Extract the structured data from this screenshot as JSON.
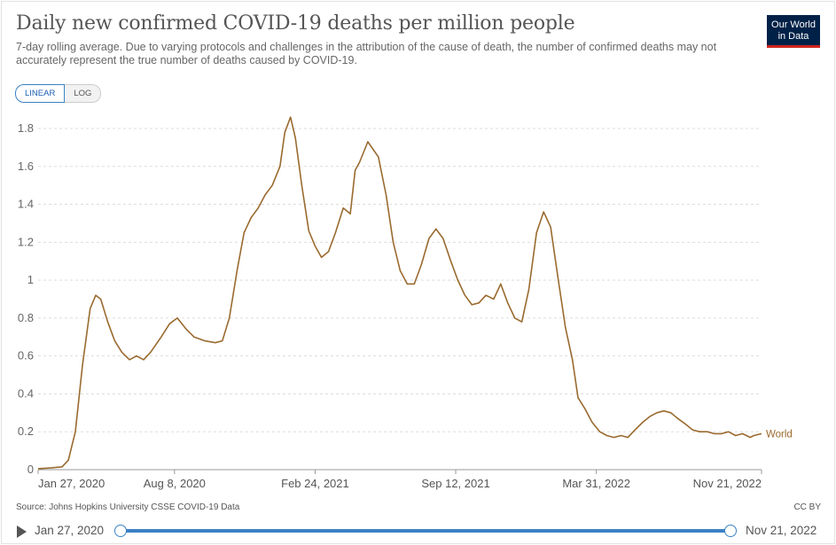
{
  "header": {
    "title": "Daily new confirmed COVID-19 deaths per million people",
    "subtitle": "7-day rolling average. Due to varying protocols and challenges in the attribution of the cause of death, the number of confirmed deaths may not accurately represent the true number of deaths caused by COVID-19.",
    "logo_line1": "Our World",
    "logo_line2": "in Data"
  },
  "controls": {
    "linear_label": "LINEAR",
    "log_label": "LOG",
    "active_scale": "linear"
  },
  "footer": {
    "source": "Source: Johns Hopkins University CSSE COVID-19 Data",
    "license": "CC BY"
  },
  "timeline": {
    "start_label": "Jan 27, 2020",
    "end_label": "Nov 21, 2022",
    "play_icon": "play-icon"
  },
  "colors": {
    "series": "#9a6a2f",
    "grid": "#dddddd",
    "accent": "#3b82c4",
    "logo_bg": "#002147",
    "logo_bar": "#ce261e"
  },
  "chart_data": {
    "type": "line",
    "title": "Daily new confirmed COVID-19 deaths per million people",
    "xlabel": "",
    "ylabel": "",
    "xlim": [
      "2020-01-27",
      "2022-11-21"
    ],
    "ylim": [
      0,
      1.8
    ],
    "yticks": [
      0,
      0.2,
      0.4,
      0.6,
      0.8,
      1,
      1.2,
      1.4,
      1.6,
      1.8
    ],
    "ytick_labels": [
      "0",
      "0.2",
      "0.4",
      "0.6",
      "0.8",
      "1",
      "1.2",
      "1.4",
      "1.6",
      "1.8"
    ],
    "xticks": [
      "2020-01-27",
      "2020-08-08",
      "2021-02-24",
      "2021-09-12",
      "2022-03-31",
      "2022-11-21"
    ],
    "xtick_labels": [
      "Jan 27, 2020",
      "Aug 8, 2020",
      "Feb 24, 2021",
      "Sep 12, 2021",
      "Mar 31, 2022",
      "Nov 21, 2022"
    ],
    "grid": true,
    "series": [
      {
        "name": "World",
        "x": [
          "2020-01-27",
          "2020-02-15",
          "2020-03-01",
          "2020-03-10",
          "2020-03-20",
          "2020-03-30",
          "2020-04-10",
          "2020-04-18",
          "2020-04-25",
          "2020-05-05",
          "2020-05-15",
          "2020-05-25",
          "2020-06-05",
          "2020-06-15",
          "2020-06-25",
          "2020-07-05",
          "2020-07-20",
          "2020-08-01",
          "2020-08-12",
          "2020-08-25",
          "2020-09-05",
          "2020-09-20",
          "2020-10-05",
          "2020-10-15",
          "2020-10-25",
          "2020-11-05",
          "2020-11-15",
          "2020-11-25",
          "2020-12-05",
          "2020-12-15",
          "2020-12-25",
          "2021-01-05",
          "2021-01-12",
          "2021-01-20",
          "2021-01-27",
          "2021-02-05",
          "2021-02-15",
          "2021-02-24",
          "2021-03-05",
          "2021-03-15",
          "2021-03-25",
          "2021-04-05",
          "2021-04-15",
          "2021-04-22",
          "2021-04-28",
          "2021-05-10",
          "2021-05-25",
          "2021-06-05",
          "2021-06-15",
          "2021-06-25",
          "2021-07-05",
          "2021-07-15",
          "2021-07-25",
          "2021-08-05",
          "2021-08-15",
          "2021-08-25",
          "2021-09-05",
          "2021-09-15",
          "2021-09-25",
          "2021-10-05",
          "2021-10-15",
          "2021-10-25",
          "2021-11-05",
          "2021-11-15",
          "2021-11-25",
          "2021-12-05",
          "2021-12-15",
          "2021-12-25",
          "2022-01-05",
          "2022-01-15",
          "2022-01-25",
          "2022-02-05",
          "2022-02-15",
          "2022-02-25",
          "2022-03-05",
          "2022-03-15",
          "2022-03-25",
          "2022-04-05",
          "2022-04-15",
          "2022-04-25",
          "2022-05-05",
          "2022-05-15",
          "2022-05-25",
          "2022-06-05",
          "2022-06-15",
          "2022-06-25",
          "2022-07-05",
          "2022-07-15",
          "2022-07-25",
          "2022-08-05",
          "2022-08-15",
          "2022-08-25",
          "2022-09-05",
          "2022-09-15",
          "2022-09-25",
          "2022-10-05",
          "2022-10-15",
          "2022-10-25",
          "2022-11-05",
          "2022-11-10",
          "2022-11-21"
        ],
        "y": [
          0.005,
          0.01,
          0.015,
          0.05,
          0.2,
          0.55,
          0.85,
          0.92,
          0.9,
          0.78,
          0.68,
          0.62,
          0.58,
          0.6,
          0.58,
          0.62,
          0.7,
          0.77,
          0.8,
          0.74,
          0.7,
          0.68,
          0.67,
          0.68,
          0.8,
          1.05,
          1.25,
          1.33,
          1.38,
          1.45,
          1.5,
          1.6,
          1.78,
          1.86,
          1.75,
          1.5,
          1.26,
          1.18,
          1.12,
          1.15,
          1.25,
          1.38,
          1.35,
          1.58,
          1.62,
          1.73,
          1.65,
          1.45,
          1.2,
          1.05,
          0.98,
          0.98,
          1.08,
          1.22,
          1.27,
          1.22,
          1.1,
          1.0,
          0.92,
          0.87,
          0.88,
          0.92,
          0.9,
          0.98,
          0.88,
          0.8,
          0.78,
          0.95,
          1.25,
          1.36,
          1.28,
          1.0,
          0.75,
          0.58,
          0.38,
          0.32,
          0.25,
          0.2,
          0.18,
          0.17,
          0.18,
          0.17,
          0.21,
          0.25,
          0.28,
          0.3,
          0.31,
          0.3,
          0.27,
          0.24,
          0.21,
          0.2,
          0.2,
          0.19,
          0.19,
          0.2,
          0.18,
          0.19,
          0.17,
          0.18,
          0.19
        ]
      }
    ]
  }
}
